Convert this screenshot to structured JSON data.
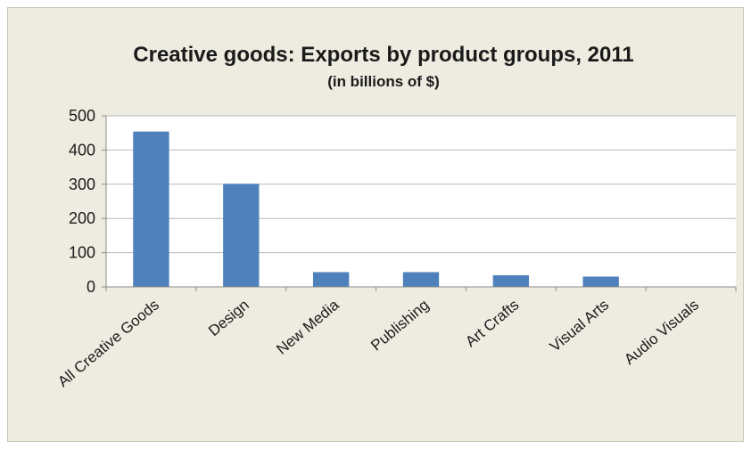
{
  "chart_data": {
    "type": "bar",
    "title": "Creative goods: Exports by product groups, 2011",
    "subtitle": "(in billions of $)",
    "categories": [
      "All Creative Goods",
      "Design",
      "New Media",
      "Publishing",
      "Art Crafts",
      "Visual Arts",
      "Audio Visuals"
    ],
    "values": [
      454,
      301,
      43,
      43,
      34,
      30,
      1
    ],
    "ylim": [
      0,
      500
    ],
    "yticks": [
      0,
      100,
      200,
      300,
      400,
      500
    ],
    "grid": true,
    "legend": "none",
    "bar_color": "#4f81bd",
    "plot_background": "#ffffff",
    "chart_background": "#eeece1",
    "gridline_color": "#b8b8b8"
  }
}
